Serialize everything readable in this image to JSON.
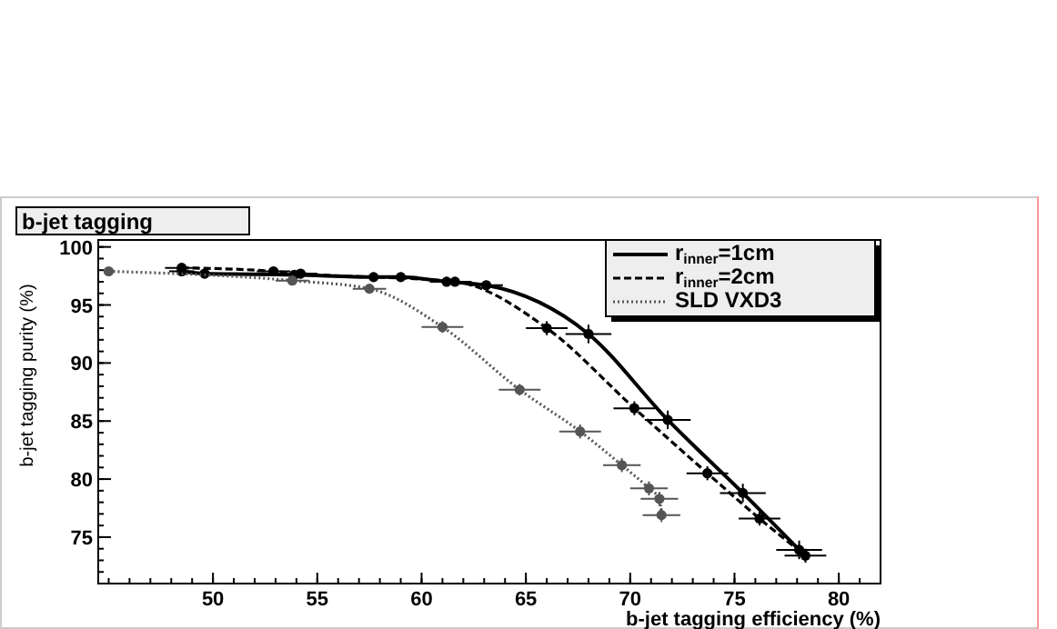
{
  "chart_data": {
    "type": "line",
    "title": "b-jet tagging",
    "xlabel": "b-jet tagging efficiency (%)",
    "ylabel": "b-jet tagging purity (%)",
    "xlim": [
      44.5,
      82
    ],
    "xticks": [
      50,
      55,
      60,
      65,
      70,
      75,
      80
    ],
    "ylim": [
      71,
      100.6
    ],
    "yticks": [
      75,
      80,
      85,
      90,
      95,
      100
    ],
    "legend": "top right",
    "marker": "circle",
    "grid": false,
    "series": [
      {
        "name": "r$_{inner}$=1cm",
        "color": "#000000",
        "line_style": "solid",
        "x": [
          48.5,
          49.6,
          53.9,
          57.7,
          59.0,
          61.2,
          63.1,
          68.0,
          71.8,
          75.4,
          78.1
        ],
        "values": [
          97.9,
          97.7,
          97.6,
          97.4,
          97.4,
          97.0,
          96.7,
          92.5,
          85.1,
          78.8,
          73.9
        ],
        "xerrors": [
          0.6,
          0.6,
          0.6,
          0.8,
          0.8,
          0.8,
          0.8,
          1.1,
          1.1,
          1.1,
          1.1
        ],
        "errors": [
          0.4,
          0.4,
          0.4,
          0.4,
          0.4,
          0.4,
          0.4,
          0.8,
          0.8,
          0.8,
          0.8
        ]
      },
      {
        "name": "r$_{inner}$=2cm",
        "color": "#000000",
        "line_style": "dashed",
        "x": [
          48.5,
          52.9,
          54.2,
          61.6,
          66.0,
          70.2,
          73.7,
          76.2,
          78.4
        ],
        "values": [
          98.2,
          97.9,
          97.7,
          97.0,
          93.0,
          86.1,
          80.5,
          76.6,
          73.4
        ],
        "xerrors": [
          0.8,
          0.8,
          0.8,
          0.8,
          1.0,
          1.0,
          1.0,
          1.0,
          1.0
        ],
        "errors": [
          0.4,
          0.4,
          0.4,
          0.4,
          0.6,
          0.6,
          0.6,
          0.6,
          0.6
        ]
      },
      {
        "name": "SLD VXD3",
        "color": "#555555",
        "line_style": "dotted",
        "x": [
          45.0,
          53.8,
          57.5,
          61.0,
          64.7,
          67.6,
          69.6,
          70.9,
          71.4,
          71.5
        ],
        "values": [
          97.9,
          97.1,
          96.4,
          93.1,
          87.7,
          84.1,
          81.2,
          79.2,
          78.3,
          76.9
        ],
        "xerrors": [
          null,
          0.8,
          0.8,
          1.0,
          1.0,
          1.0,
          0.9,
          0.9,
          0.9,
          0.9
        ],
        "errors": [
          null,
          0.3,
          0.4,
          0.5,
          0.5,
          0.6,
          0.6,
          0.6,
          0.6,
          0.6
        ]
      }
    ]
  }
}
